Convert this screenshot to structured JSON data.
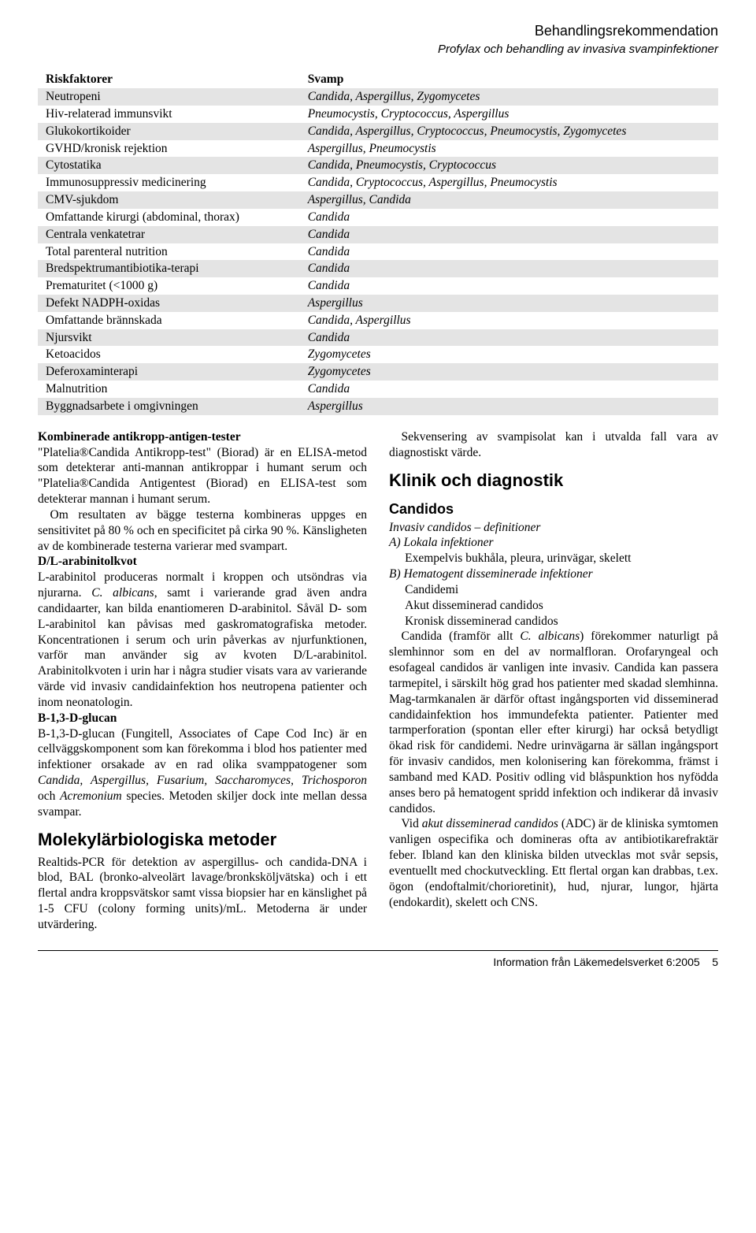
{
  "header": {
    "title": "Behandlingsrekommendation",
    "subtitle": "Profylax och behandling av invasiva svampinfektioner"
  },
  "table": {
    "head_left": "Riskfaktorer",
    "head_right": "Svamp",
    "row_bg_shade": "#e4e4e4",
    "rows": [
      {
        "l": "Neutropeni",
        "r": "Candida, Aspergillus, Zygomycetes"
      },
      {
        "l": "Hiv-relaterad immunsvikt",
        "r": "Pneumocystis, Cryptococcus, Aspergillus"
      },
      {
        "l": "Glukokortikoider",
        "r": "Candida, Aspergillus, Cryptococcus, Pneumocystis, Zygomycetes"
      },
      {
        "l": "GVHD/kronisk rejektion",
        "r": "Aspergillus, Pneumocystis"
      },
      {
        "l": "Cytostatika",
        "r": "Candida, Pneumocystis, Cryptococcus"
      },
      {
        "l": "Immunosuppressiv medicinering",
        "r": "Candida, Cryptococcus, Aspergillus, Pneumocystis"
      },
      {
        "l": "CMV-sjukdom",
        "r": "Aspergillus, Candida"
      },
      {
        "l": "Omfattande kirurgi (abdominal, thorax)",
        "r": "Candida"
      },
      {
        "l": "Centrala venkatetrar",
        "r": "Candida"
      },
      {
        "l": "Total parenteral nutrition",
        "r": "Candida"
      },
      {
        "l": "Bredspektrumantibiotika-terapi",
        "r": "Candida"
      },
      {
        "l": "Prematuritet (<1000 g)",
        "r": "Candida"
      },
      {
        "l": "Defekt NADPH-oxidas",
        "r": "Aspergillus"
      },
      {
        "l": "Omfattande brännskada",
        "r": "Candida, Aspergillus"
      },
      {
        "l": "Njursvikt",
        "r": "Candida"
      },
      {
        "l": "Ketoacidos",
        "r": "Zygomycetes"
      },
      {
        "l": "Deferoxaminterapi",
        "r": "Zygomycetes"
      },
      {
        "l": "Malnutrition",
        "r": "Candida"
      },
      {
        "l": "Byggnadsarbete i omgivningen",
        "r": "Aspergillus"
      }
    ]
  },
  "body": {
    "h_kombi": "Kombinerade antikropp-antigen-tester",
    "p_kombi": "\"Platelia®Candida Antikropp-test\" (Biorad) är en ELISA-metod som detekterar anti-mannan antikroppar i humant serum och \"Platelia®Candida Antigentest (Biorad) en ELISA-test som detekterar mannan i humant serum.",
    "p_kombi2": "Om resultaten av bägge testerna kombineras uppges en sensitivitet på 80 % och en specificitet på cirka 90 %. Känsligheten av de kombinerade testerna varierar med svampart.",
    "h_dl": "D/L-arabinitolkvot",
    "p_dl_a": "L-arabinitol produceras normalt i kroppen och utsöndras via njurarna. ",
    "p_dl_b": "C. albicans",
    "p_dl_c": ", samt i varierande grad även andra candidaarter, kan bilda enantiomeren D-arabinitol. Såväl D- som L-arabinitol kan påvisas med gaskromatografiska metoder. Koncentrationen i serum och urin påverkas av njurfunktionen, varför man använder sig av kvoten D/L-arabinitol. Arabinitolkvoten i urin har i några studier visats vara av varierande värde vid invasiv candidainfektion hos neutropena patienter och inom neonatologin.",
    "h_bdg": "B-1,3-D-glucan",
    "p_bdg_a": "B-1,3-D-glucan (Fungitell, Associates of Cape Cod Inc) är en cellväggskomponent som kan förekomma i blod hos patienter med infektioner orsakade av en rad olika svamppatogener som ",
    "p_bdg_b": "Candida, Aspergillus, Fusarium, Saccharomyces, Trichosporon",
    "p_bdg_c": " och ",
    "p_bdg_d": "Acremonium",
    "p_bdg_e": " species. Metoden skiljer dock inte mellan dessa svampar.",
    "h_mol": "Molekylärbiologiska metoder",
    "p_mol": "Realtids-PCR för detektion av aspergillus- och candida-DNA i blod, BAL (bronko-alveolärt lavage/bronksköljvätska) och i ett flertal andra kroppsvätskor samt vissa biopsier har en känslighet på 1-5 CFU (colony forming units)/mL. Metoderna är under utvärdering.",
    "p_seq": "Sekvensering av svampisolat kan i utvalda fall vara av diagnostiskt värde.",
    "h_klinik": "Klinik och diagnostik",
    "h_candidos": "Candidos",
    "i_invasiv": "Invasiv candidos – definitioner",
    "i_a": "A) Lokala infektioner",
    "i_a_ex": "Exempelvis bukhåla, pleura, urinvägar, skelett",
    "i_b": "B) Hematogent disseminerade infektioner",
    "i_b1": "Candidemi",
    "i_b2": "Akut disseminerad candidos",
    "i_b3": "Kronisk disseminerad candidos",
    "p_cand_a": "Candida (framför allt ",
    "p_cand_b": "C. albicans",
    "p_cand_c": ") förekommer naturligt på slemhinnor som en del av normalfloran. Orofaryngeal och esofageal candidos är vanligen inte invasiv. Candida kan passera tarmepitel, i särskilt hög grad hos patienter med skadad slemhinna. Mag-tarmkanalen är därför oftast ingångsporten vid disseminerad candidainfektion hos immundefekta patienter. Patienter med tarmperforation (spontan eller efter kirurgi) har också betydligt ökad risk för candidemi. Nedre urinvägarna är sällan ingångsport för invasiv candidos, men kolonisering kan förekomma, främst i samband med KAD. Positiv odling vid blåspunktion hos nyfödda anses bero på hematogent spridd infektion och indikerar då invasiv candidos.",
    "p_adc_a": "Vid ",
    "p_adc_b": "akut disseminerad candidos",
    "p_adc_c": " (ADC) är de kliniska symtomen vanligen ospecifika och domineras ofta av antibiotikarefraktär feber. Ibland kan den kliniska bilden utvecklas mot svår sepsis, eventuellt med chockutveckling. Ett flertal organ kan drabbas, t.ex. ögon (endoftalmit/chorioretinit), hud, njurar, lungor, hjärta (endokardit), skelett och CNS."
  },
  "footer": {
    "text": "Information från Läkemedelsverket 6:2005",
    "page": "5"
  }
}
